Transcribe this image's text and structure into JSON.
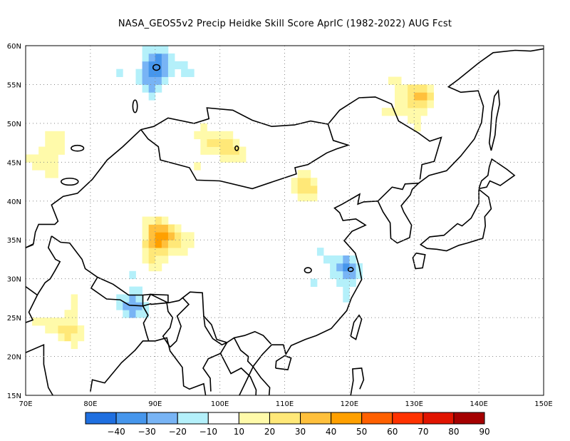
{
  "title": "NASA_GEOS5v2 Precip Heidke Skill Score AprIC (1982-2022) AUG Fcst",
  "axes": {
    "lon_labels": [
      "70E",
      "80E",
      "90E",
      "100E",
      "110E",
      "120E",
      "130E",
      "140E",
      "150E"
    ],
    "lat_labels": [
      "15N",
      "20N",
      "25N",
      "30N",
      "35N",
      "40N",
      "45N",
      "50N",
      "55N",
      "60N"
    ]
  },
  "colorbar": {
    "labels": [
      "−40",
      "−30",
      "−20",
      "−10",
      "10",
      "20",
      "30",
      "40",
      "50",
      "60",
      "70",
      "80",
      "90"
    ],
    "colors": [
      "#1f6fe0",
      "#4696ec",
      "#78b4f5",
      "#b4f0fa",
      "#ffffff",
      "#fffaaa",
      "#ffe878",
      "#ffc03c",
      "#ffa000",
      "#ff6000",
      "#ff3200",
      "#e11400",
      "#a50000"
    ]
  },
  "chart_data": {
    "type": "heatmap",
    "title": "NASA_GEOS5v2 Precip Heidke Skill Score AprIC (1982-2022) AUG Fcst",
    "lon_range": [
      70,
      150
    ],
    "lat_range": [
      15,
      60
    ],
    "levels": [
      -40,
      -30,
      -20,
      -10,
      10,
      20,
      30,
      40,
      50,
      60,
      70,
      80,
      90
    ],
    "grid": true,
    "notable_regions": [
      {
        "lon": 90,
        "lat": 57,
        "value": -35
      },
      {
        "lon": 91,
        "lat": 35,
        "value": 45
      },
      {
        "lon": 100,
        "lat": 47,
        "value": 25
      },
      {
        "lon": 130,
        "lat": 53,
        "value": 30
      },
      {
        "lon": 119,
        "lat": 31,
        "value": -25
      },
      {
        "lon": 76,
        "lat": 24,
        "value": 20
      },
      {
        "lon": 87,
        "lat": 27,
        "value": -20
      },
      {
        "lon": 113,
        "lat": 42,
        "value": 20
      },
      {
        "lon": 73,
        "lat": 46,
        "value": 20
      }
    ]
  }
}
